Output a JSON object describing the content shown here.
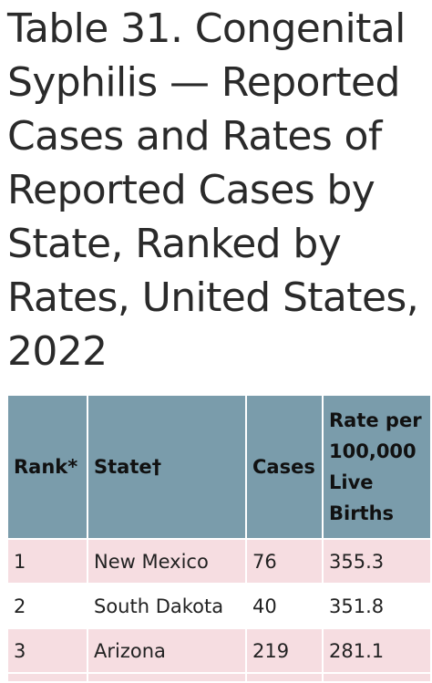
{
  "title": "Table 31. Congenital Syphilis — Reported Cases and Rates of Reported Cases by State, Ranked by Rates, United States, 2022",
  "table": {
    "headers": [
      "Rank*",
      "State†",
      "Cases",
      "Rate per 100,000 Live Births"
    ],
    "rows": [
      {
        "rank": "1",
        "state": "New Mexico",
        "cases": "76",
        "rate": "355.3"
      },
      {
        "rank": "2",
        "state": "South Dakota",
        "cases": "40",
        "rate": "351.8"
      },
      {
        "rank": "3",
        "state": "Arizona",
        "cases": "219",
        "rate": "281.1"
      }
    ]
  }
}
